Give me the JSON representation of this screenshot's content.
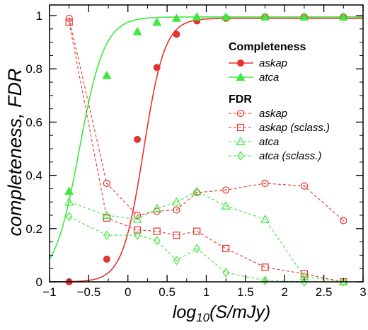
{
  "chart_data": {
    "type": "line",
    "xlabel": {
      "main": "log",
      "sub": "10",
      "tail": "(S/mJy)"
    },
    "ylabel": "completeness, FDR",
    "xlim": [
      -1,
      3
    ],
    "ylim": [
      0,
      1.04
    ],
    "xticks": [
      -1,
      -0.5,
      0,
      0.5,
      1,
      1.5,
      2,
      2.5,
      3
    ],
    "xtick_labels": [
      "−1",
      "−0.5",
      "0",
      "0.5",
      "1",
      "1.5",
      "2",
      "2.5",
      "3"
    ],
    "yticks": [
      0,
      0.2,
      0.4,
      0.6,
      0.8,
      1
    ],
    "ytick_labels": [
      "0",
      "0.2",
      "0.4",
      "0.6",
      "0.8",
      "1"
    ],
    "grid": false,
    "legend_position": "top-right",
    "colors": {
      "red": "#e8322e",
      "green": "#3ee83e"
    },
    "completeness_title": "Completeness",
    "fdr_title": "FDR",
    "series": [
      {
        "name": "askap",
        "group": "completeness",
        "color": "#e8322e",
        "marker": "filled-circle",
        "line": "solid",
        "x": [
          -0.75,
          -0.27,
          0.12,
          0.37,
          0.62,
          0.88,
          1.25,
          1.75,
          2.25,
          2.75
        ],
        "y": [
          0.0,
          0.085,
          0.535,
          0.805,
          0.93,
          0.98,
          0.99,
          0.995,
          0.995,
          0.995
        ],
        "fit": {
          "x0": 0.2,
          "w": 0.135,
          "top": 0.99
        }
      },
      {
        "name": "atca",
        "group": "completeness",
        "color": "#3ee83e",
        "marker": "filled-triangle",
        "line": "solid",
        "x": [
          -0.75,
          -0.27,
          0.12,
          0.37,
          0.62,
          0.88,
          1.25,
          1.75,
          2.25,
          2.75
        ],
        "y": [
          0.34,
          0.775,
          0.94,
          0.975,
          0.99,
          0.995,
          0.995,
          0.995,
          0.995,
          0.995
        ],
        "fit": {
          "x0": -0.62,
          "w": 0.16,
          "top": 0.995
        }
      },
      {
        "name": "askap",
        "group": "fdr",
        "color": "#e8322e",
        "marker": "open-circle",
        "line": "dashed",
        "x": [
          -0.75,
          -0.27,
          0.12,
          0.37,
          0.62,
          0.88,
          1.25,
          1.75,
          2.25,
          2.75
        ],
        "y": [
          0.99,
          0.37,
          0.25,
          0.265,
          0.27,
          0.335,
          0.345,
          0.37,
          0.36,
          0.23
        ]
      },
      {
        "name": "askap (sclass.)",
        "group": "fdr",
        "color": "#e8322e",
        "marker": "open-square",
        "line": "dashed",
        "x": [
          -0.75,
          -0.27,
          0.12,
          0.37,
          0.62,
          0.88,
          1.25,
          1.75,
          2.25,
          2.75
        ],
        "y": [
          0.975,
          0.24,
          0.195,
          0.19,
          0.175,
          0.19,
          0.125,
          0.055,
          0.03,
          0.0
        ]
      },
      {
        "name": "atca",
        "group": "fdr",
        "color": "#3ee83e",
        "marker": "open-triangle",
        "line": "dashed",
        "x": [
          -0.75,
          -0.27,
          0.12,
          0.37,
          0.62,
          0.88,
          1.25,
          1.75,
          2.25,
          2.75
        ],
        "y": [
          0.3,
          0.25,
          0.235,
          0.275,
          0.3,
          0.34,
          0.285,
          0.235,
          0.02,
          0.0
        ]
      },
      {
        "name": "atca (sclass.)",
        "group": "fdr",
        "color": "#3ee83e",
        "marker": "open-diamond",
        "line": "dashed",
        "x": [
          -0.75,
          -0.27,
          0.12,
          0.37,
          0.62,
          0.88,
          1.25,
          1.75,
          2.25,
          2.75
        ],
        "y": [
          0.245,
          0.175,
          0.175,
          0.155,
          0.08,
          0.125,
          0.035,
          0.005,
          0.0,
          0.0
        ]
      }
    ]
  }
}
